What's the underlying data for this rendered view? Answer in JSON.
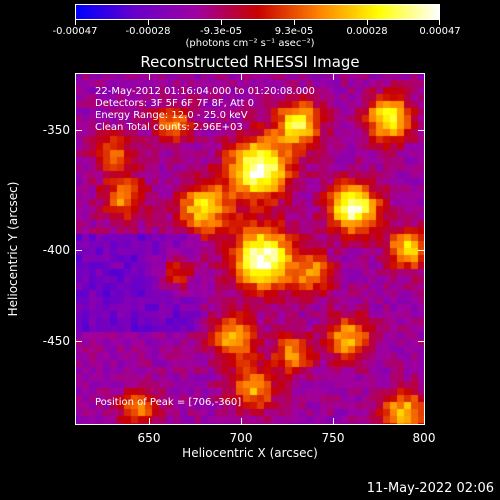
{
  "colorbar": {
    "tick_labels": [
      "-0.00047",
      "-0.00028",
      "-9.3e-05",
      "9.3e-05",
      "0.00028",
      "0.00047"
    ],
    "units_label": "(photons cm⁻² s⁻¹ asec⁻²)",
    "colors": [
      "#0000ff",
      "#6a00c8",
      "#a000a0",
      "#c80000",
      "#ff8000",
      "#ffff00",
      "#ffffff"
    ]
  },
  "plot": {
    "title": "Reconstructed RHESSI Image",
    "info_lines": [
      "22-May-2012 01:16:04.000 to 01:20:08.000",
      "Detectors: 3F 5F 6F 7F 8F, Att 0",
      "Energy Range: 12.0 - 25.0 keV",
      "Clean    Total counts: 2.96E+03"
    ],
    "peak_text": "Position of Peak = [706,-360]",
    "x_axis_label": "Heliocentric X (arcsec)",
    "y_axis_label": "Heliocentric Y (arcsec)",
    "x_ticks": [
      "650",
      "700",
      "750",
      "800"
    ],
    "y_ticks": [
      "-350",
      "-400",
      "-450"
    ],
    "x_range": [
      610,
      800
    ],
    "y_range": [
      -500,
      -310
    ]
  },
  "timestamp": "11-May-2022 02:06"
}
